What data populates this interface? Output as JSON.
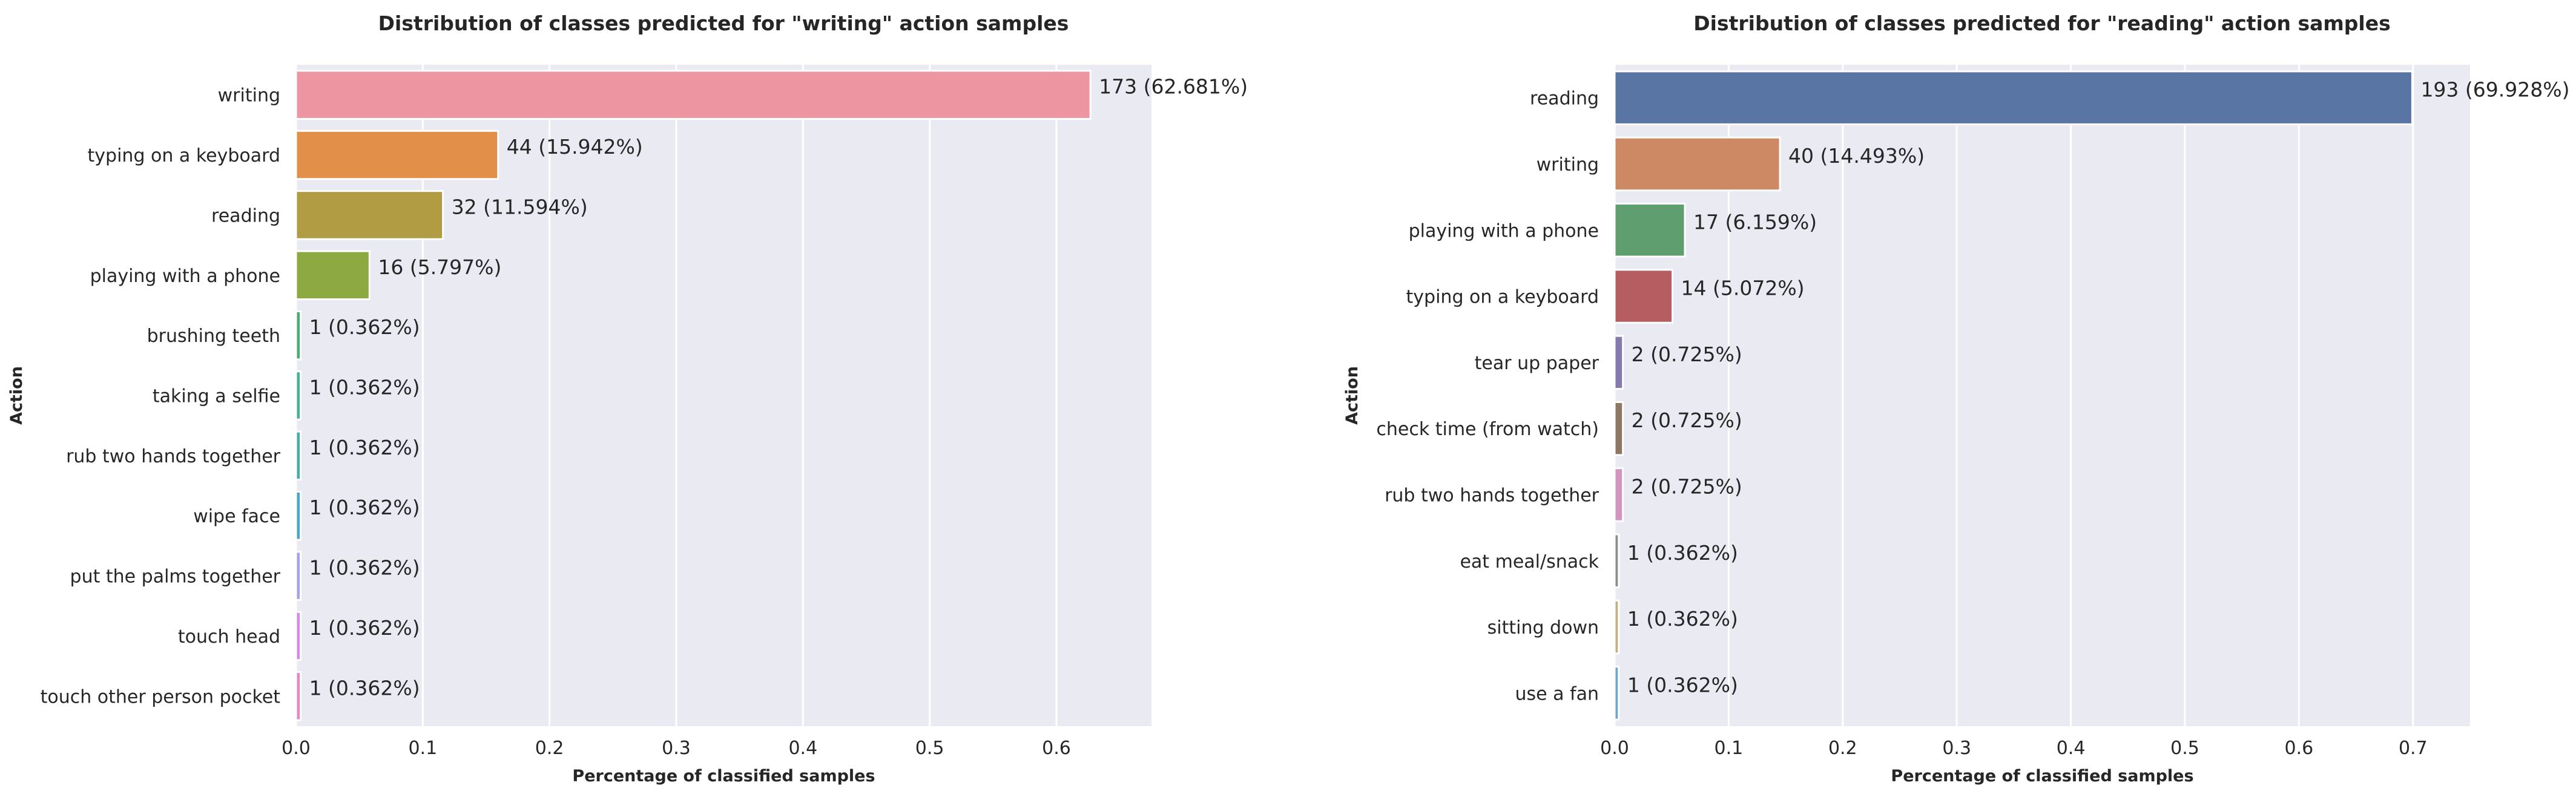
{
  "chart_data": [
    {
      "type": "bar",
      "orientation": "horizontal",
      "title": "Distribution of classes predicted for \"writing\" action samples",
      "xlabel": "Percentage of classified samples",
      "ylabel": "Action",
      "xlim": [
        0,
        0.675
      ],
      "xticks": [
        0.0,
        0.1,
        0.2,
        0.3,
        0.4,
        0.5,
        0.6
      ],
      "xtick_labels": [
        "0.0",
        "0.1",
        "0.2",
        "0.3",
        "0.4",
        "0.5",
        "0.6"
      ],
      "grid": true,
      "categories": [
        "writing",
        "typing on a keyboard",
        "reading",
        "playing with a phone",
        "brushing teeth",
        "taking a selfie",
        "rub two hands together",
        "wipe face",
        "put the palms together",
        "touch head",
        "touch other person pocket"
      ],
      "values": [
        0.62681,
        0.15942,
        0.11594,
        0.05797,
        0.00362,
        0.00362,
        0.00362,
        0.00362,
        0.00362,
        0.00362,
        0.00362
      ],
      "data_labels": [
        "173 (62.681%)",
        "44 (15.942%)",
        "32 (11.594%)",
        "16 (5.797%)",
        "1 (0.362%)",
        "1 (0.362%)",
        "1 (0.362%)",
        "1 (0.362%)",
        "1 (0.362%)",
        "1 (0.362%)",
        "1 (0.362%)"
      ],
      "colors": [
        "#ED96A2",
        "#E29049",
        "#B19C44",
        "#8DA941",
        "#45B06E",
        "#45AF99",
        "#45AEAC",
        "#45A7C4",
        "#A3A3E6",
        "#D688E6",
        "#E886C4"
      ]
    },
    {
      "type": "bar",
      "orientation": "horizontal",
      "title": "Distribution of classes predicted for \"reading\" action samples",
      "xlabel": "Percentage of classified samples",
      "ylabel": "Action",
      "xlim": [
        0,
        0.75
      ],
      "xticks": [
        0.0,
        0.1,
        0.2,
        0.3,
        0.4,
        0.5,
        0.6,
        0.7
      ],
      "xtick_labels": [
        "0.0",
        "0.1",
        "0.2",
        "0.3",
        "0.4",
        "0.5",
        "0.6",
        "0.7"
      ],
      "grid": true,
      "categories": [
        "reading",
        "writing",
        "playing with a phone",
        "typing on a keyboard",
        "tear up paper",
        "check time (from watch)",
        "rub two hands together",
        "eat meal/snack",
        "sitting down",
        "use a fan"
      ],
      "values": [
        0.69928,
        0.14493,
        0.06159,
        0.05072,
        0.00725,
        0.00725,
        0.00725,
        0.00362,
        0.00362,
        0.00362
      ],
      "data_labels": [
        "193 (69.928%)",
        "40 (14.493%)",
        "17 (6.159%)",
        "14 (5.072%)",
        "2 (0.725%)",
        "2 (0.725%)",
        "2 (0.725%)",
        "1 (0.362%)",
        "1 (0.362%)",
        "1 (0.362%)"
      ],
      "colors": [
        "#5875A4",
        "#CC8963",
        "#5F9E6E",
        "#B55D60",
        "#857AAB",
        "#8D7866",
        "#D195C0",
        "#8C8C8C",
        "#C1B37F",
        "#6EA7C9"
      ]
    }
  ]
}
